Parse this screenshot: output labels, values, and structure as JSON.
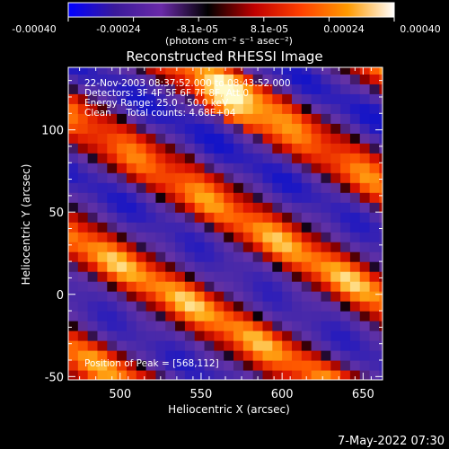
{
  "colorbar": {
    "tick_labels": [
      "-0.00040",
      "-0.00024",
      "-8.1e-05",
      "8.1e-05",
      "0.00024",
      "0.00040"
    ],
    "unit_label": "(photons cm⁻² s⁻¹ asec⁻²)",
    "range": [
      -0.0004,
      0.0004
    ],
    "colormap": [
      "#0000ff",
      "#3a1a9a",
      "#6a2aa8",
      "#000000",
      "#c00000",
      "#ff4000",
      "#ff9a00",
      "#ffffff"
    ]
  },
  "chart_data": {
    "type": "heatmap",
    "title": "Reconstructed RHESSI Image",
    "xlabel": "Heliocentric X (arcsec)",
    "ylabel": "Heliocentric Y (arcsec)",
    "xlim": [
      468,
      662
    ],
    "ylim": [
      -52,
      138
    ],
    "x_ticks": [
      500,
      550,
      600,
      650
    ],
    "y_ticks": [
      -50,
      0,
      50,
      100
    ],
    "pattern": "diagonal stripes (upper-left to lower-right), alternating bright red/orange/yellow and dim purple/blue",
    "peak_position": [
      568,
      112
    ],
    "annotations": [
      "22-Nov-2003 08:37:52.000 to 08:43:52.000",
      "Detectors: 3F 4F 5F 6F 7F 8F, Att 0",
      "Energy Range: 25.0 - 50.0 keV",
      "Clean     Total counts: 4.68E+04"
    ],
    "peak_label": "Position of Peak = [568,112]"
  },
  "footer": {
    "date": "7-May-2022 07:30"
  }
}
